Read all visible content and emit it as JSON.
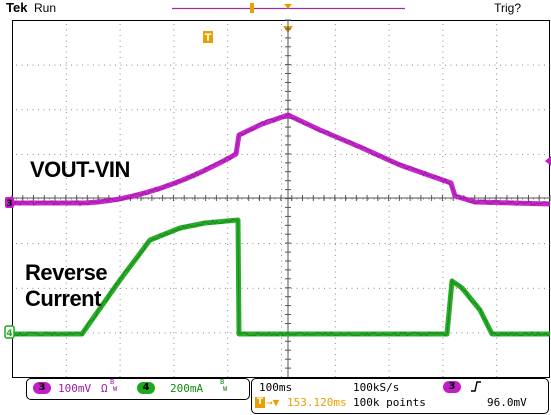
{
  "header": {
    "brand": "Tek",
    "run_state": "Run",
    "trigger_status": "Trig?"
  },
  "colors": {
    "ch3": "#c21ec8",
    "ch4": "#1ea81e",
    "trigger": "#e8a000",
    "grid": "#8c8c8c",
    "record_bar": "#9a2fa0"
  },
  "traces": {
    "ch3_label": "VOUT-VIN",
    "ch4_label_line1": "Reverse",
    "ch4_label_line2": "Current",
    "ch3_marker": "3",
    "ch4_marker": "4",
    "trigger_marker": "T"
  },
  "status": {
    "ch3": {
      "number": "3",
      "scale": "100mV",
      "coupling": "Ω",
      "bw": "B",
      "bw_suffix": "W"
    },
    "ch4": {
      "number": "4",
      "scale": "200mA",
      "bw": "B",
      "bw_suffix": "W"
    },
    "timebase": "100ms",
    "sample_rate": "100kS/s",
    "trigger_position_icon": "T",
    "trigger_position": "153.120ms",
    "record_length": "100k points",
    "trigger_source": "3",
    "trigger_slope_icon": "rising-edge-icon",
    "trigger_level": "96.0mV"
  }
}
